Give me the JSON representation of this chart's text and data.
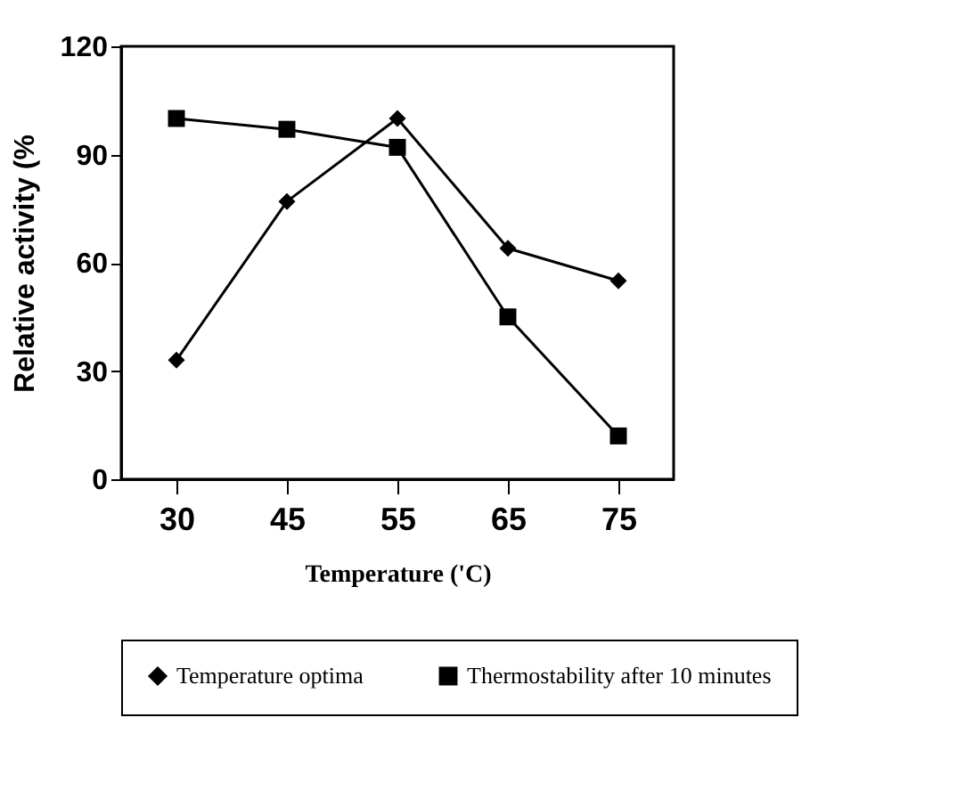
{
  "chart_data": {
    "type": "line",
    "xlabel": "Temperature ('C)",
    "ylabel": "Relative activity (%",
    "categories": [
      "30",
      "45",
      "55",
      "65",
      "75"
    ],
    "series": [
      {
        "name": "Temperature optima",
        "color": "#000000",
        "marker": "diamond",
        "values": [
          33,
          77,
          100,
          64,
          55
        ]
      },
      {
        "name": "Thermostability after 10 minutes",
        "color": "#000000",
        "marker": "square",
        "values": [
          100,
          97,
          92,
          45,
          12
        ]
      }
    ],
    "ylim": [
      0,
      120
    ],
    "yticks": [
      0,
      30,
      60,
      90,
      120
    ],
    "grid": false,
    "legend": "bottom",
    "line_style": "solid"
  }
}
